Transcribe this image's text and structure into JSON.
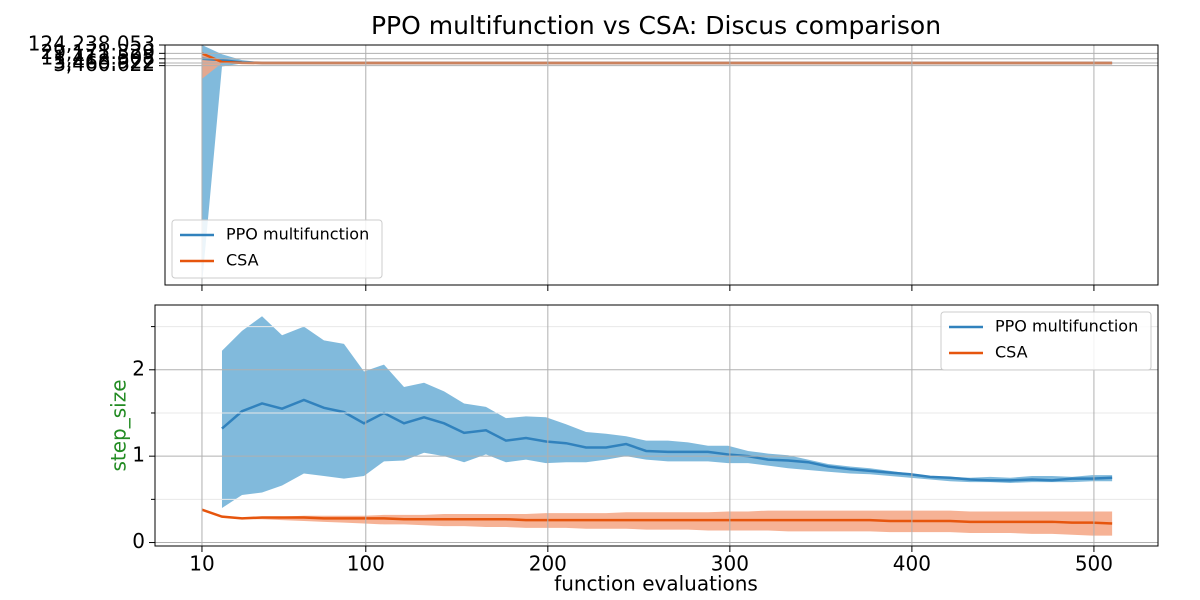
{
  "chart_data": [
    {
      "type": "line",
      "title": "PPO multifunction vs CSA: Discus comparison",
      "log_y": true,
      "grid": true,
      "legend": "lower left",
      "x": [
        10,
        21,
        32,
        43,
        54,
        66,
        510
      ],
      "xlim": [
        -10.3,
        535.2
      ],
      "xticks": [
        10,
        100,
        200,
        300,
        400,
        500
      ],
      "ylim": [
        1e-13,
        124238.053
      ],
      "yticks": [
        {
          "value": 124238.053,
          "label": "124,238.053"
        },
        {
          "value": 29171.329,
          "label": "29,171.329"
        },
        {
          "value": 11412.508,
          "label": "11,412.508"
        },
        {
          "value": 5468.922,
          "label": "5,468.922"
        },
        {
          "value": 3460.622,
          "label": "3,460.622"
        }
      ],
      "series": [
        {
          "name": "PPO multifunction",
          "color": "#3182bd",
          "fill": "#6baed6",
          "values": [
            11412.5,
            9000,
            6000,
            5500,
            5469,
            5469,
            5469
          ],
          "upper": [
            124238.053,
            25000,
            9000,
            6000,
            5469,
            5469,
            5469
          ],
          "lower": [
            1e-13,
            3000,
            5000,
            5400,
            5469,
            5469,
            5469
          ]
        },
        {
          "name": "CSA",
          "color": "#e6550d",
          "fill": "#f4a582",
          "values": [
            29171.3,
            6500,
            5600,
            5469,
            5469,
            5469,
            5469
          ],
          "upper": [
            29171.3,
            7000,
            5800,
            5500,
            5469,
            5469,
            5469
          ],
          "lower": [
            350,
            5500,
            5400,
            5469,
            5469,
            5469,
            5469
          ]
        }
      ]
    },
    {
      "type": "line",
      "xlabel": "function evaluations",
      "ylabel": "step_size",
      "ylabel_color": "#228b22",
      "grid": true,
      "legend": "upper right",
      "x": [
        10,
        21,
        32,
        43,
        54,
        66,
        77,
        88,
        99,
        110,
        121,
        132,
        143,
        154,
        166,
        177,
        188,
        199,
        210,
        221,
        232,
        243,
        254,
        266,
        277,
        288,
        299,
        310,
        321,
        332,
        343,
        354,
        366,
        377,
        388,
        399,
        410,
        421,
        432,
        443,
        454,
        466,
        477,
        488,
        499,
        510
      ],
      "xlim": [
        -15.8,
        535.2
      ],
      "xticks": [
        10,
        100,
        200,
        300,
        400,
        500
      ],
      "ylim": [
        -0.04,
        2.75
      ],
      "yticks": [
        0,
        1,
        2
      ],
      "yminorticks": [
        0.5,
        1.5,
        2.5
      ],
      "series": [
        {
          "name": "PPO multifunction",
          "color": "#3182bd",
          "fill": "#6baed6",
          "values": [
            null,
            1.32,
            1.52,
            1.61,
            1.55,
            1.65,
            1.56,
            1.51,
            1.38,
            1.5,
            1.38,
            1.45,
            1.38,
            1.27,
            1.3,
            1.18,
            1.21,
            1.17,
            1.15,
            1.1,
            1.1,
            1.14,
            1.06,
            1.05,
            1.05,
            1.05,
            1.02,
            1.0,
            0.96,
            0.95,
            0.93,
            0.88,
            0.85,
            0.83,
            0.81,
            0.79,
            0.76,
            0.75,
            0.73,
            0.72,
            0.72,
            0.73,
            0.72,
            0.74,
            0.74,
            0.75
          ],
          "upper": [
            null,
            2.22,
            2.45,
            2.62,
            2.4,
            2.5,
            2.34,
            2.3,
            1.98,
            2.06,
            1.8,
            1.85,
            1.75,
            1.61,
            1.57,
            1.44,
            1.46,
            1.45,
            1.37,
            1.28,
            1.26,
            1.23,
            1.18,
            1.18,
            1.16,
            1.12,
            1.12,
            1.06,
            1.03,
            1.01,
            0.96,
            0.91,
            0.88,
            0.86,
            0.83,
            0.8,
            0.77,
            0.76,
            0.75,
            0.76,
            0.75,
            0.77,
            0.77,
            0.76,
            0.78,
            0.78
          ],
          "lower": [
            null,
            0.4,
            0.55,
            0.58,
            0.66,
            0.8,
            0.77,
            0.74,
            0.77,
            0.94,
            0.95,
            1.04,
            1.0,
            0.93,
            1.02,
            0.93,
            0.96,
            0.92,
            0.93,
            0.93,
            0.96,
            1.0,
            0.96,
            0.94,
            0.94,
            0.94,
            0.92,
            0.92,
            0.89,
            0.86,
            0.84,
            0.82,
            0.8,
            0.79,
            0.77,
            0.75,
            0.73,
            0.71,
            0.7,
            0.7,
            0.69,
            0.7,
            0.7,
            0.7,
            0.71,
            0.71
          ]
        },
        {
          "name": "CSA",
          "color": "#e6550d",
          "fill": "#f4a582",
          "values": [
            0.38,
            0.3,
            0.28,
            0.29,
            0.29,
            0.29,
            0.28,
            0.28,
            0.28,
            0.28,
            0.27,
            0.27,
            0.27,
            0.27,
            0.27,
            0.27,
            0.26,
            0.26,
            0.26,
            0.26,
            0.26,
            0.26,
            0.26,
            0.26,
            0.26,
            0.26,
            0.26,
            0.26,
            0.26,
            0.26,
            0.26,
            0.26,
            0.26,
            0.26,
            0.25,
            0.25,
            0.25,
            0.25,
            0.24,
            0.24,
            0.24,
            0.24,
            0.24,
            0.23,
            0.23,
            0.22
          ],
          "upper": [
            0.38,
            0.3,
            0.29,
            0.3,
            0.3,
            0.31,
            0.31,
            0.31,
            0.31,
            0.32,
            0.32,
            0.32,
            0.33,
            0.33,
            0.33,
            0.33,
            0.33,
            0.34,
            0.34,
            0.34,
            0.34,
            0.35,
            0.35,
            0.35,
            0.35,
            0.35,
            0.36,
            0.36,
            0.37,
            0.37,
            0.37,
            0.37,
            0.37,
            0.37,
            0.37,
            0.37,
            0.37,
            0.37,
            0.36,
            0.36,
            0.36,
            0.36,
            0.36,
            0.36,
            0.36,
            0.36
          ],
          "lower": [
            0.38,
            0.29,
            0.27,
            0.27,
            0.26,
            0.25,
            0.24,
            0.23,
            0.22,
            0.21,
            0.21,
            0.2,
            0.19,
            0.19,
            0.18,
            0.18,
            0.17,
            0.17,
            0.17,
            0.16,
            0.16,
            0.16,
            0.15,
            0.15,
            0.15,
            0.14,
            0.14,
            0.14,
            0.14,
            0.13,
            0.13,
            0.13,
            0.13,
            0.13,
            0.12,
            0.12,
            0.12,
            0.12,
            0.11,
            0.11,
            0.11,
            0.1,
            0.1,
            0.09,
            0.08,
            0.08
          ]
        }
      ]
    }
  ]
}
